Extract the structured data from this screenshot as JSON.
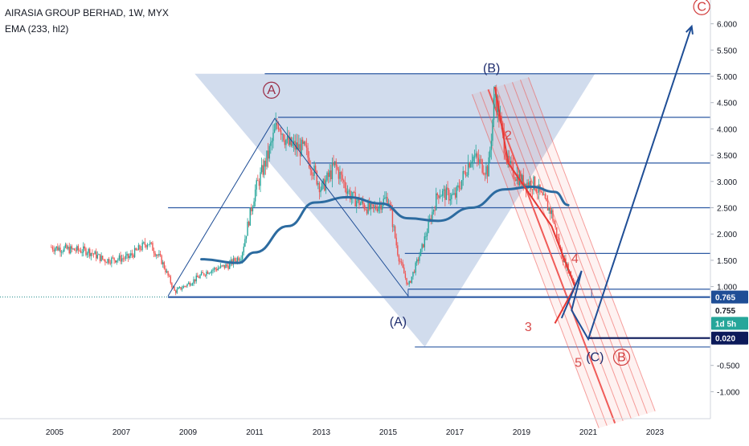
{
  "header": {
    "symbol_line": "AIRASIA GROUP BERHAD, 1W, MYX",
    "indicator_line": "EMA (233, hl2)"
  },
  "colors": {
    "candle_up": "#26a69a",
    "candle_down": "#ef5350",
    "ema": "#2c6ba0",
    "fib_line": "#2d5aa3",
    "fib_fill": "#c9d6ea",
    "channel": "#ef5350",
    "projection": "#1f4e96",
    "price_tag": "#1f4e96",
    "countdown_tag": "#26a69a",
    "low_tag": "#0c1a5a"
  },
  "chart_data": {
    "type": "candlestick",
    "x_axis": {
      "ticks": [
        "2005",
        "2007",
        "2009",
        "2011",
        "2013",
        "2015",
        "2017",
        "2019",
        "2021",
        "2023"
      ],
      "range": [
        2004.0,
        2024.0
      ]
    },
    "y_axis": {
      "ticks": [
        "6.000",
        "5.500",
        "5.000",
        "4.500",
        "4.000",
        "3.500",
        "3.000",
        "2.500",
        "2.000",
        "1.500",
        "1.000",
        "-0.500",
        "-1.000"
      ],
      "range": [
        -1.5,
        6.4
      ],
      "grid": false
    },
    "price_series_keypoints": [
      {
        "t": 2004.9,
        "v": 1.75
      },
      {
        "t": 2005.5,
        "v": 1.7
      },
      {
        "t": 2006.0,
        "v": 1.68
      },
      {
        "t": 2006.5,
        "v": 1.5
      },
      {
        "t": 2007.2,
        "v": 1.55
      },
      {
        "t": 2007.8,
        "v": 1.85
      },
      {
        "t": 2008.2,
        "v": 1.5
      },
      {
        "t": 2008.6,
        "v": 0.9
      },
      {
        "t": 2009.0,
        "v": 1.05
      },
      {
        "t": 2009.6,
        "v": 1.3
      },
      {
        "t": 2010.2,
        "v": 1.4
      },
      {
        "t": 2010.6,
        "v": 1.6
      },
      {
        "t": 2011.0,
        "v": 2.8
      },
      {
        "t": 2011.4,
        "v": 3.5
      },
      {
        "t": 2011.7,
        "v": 4.15
      },
      {
        "t": 2012.0,
        "v": 3.7
      },
      {
        "t": 2012.5,
        "v": 3.6
      },
      {
        "t": 2013.0,
        "v": 2.85
      },
      {
        "t": 2013.4,
        "v": 3.3
      },
      {
        "t": 2013.9,
        "v": 2.7
      },
      {
        "t": 2014.5,
        "v": 2.45
      },
      {
        "t": 2015.0,
        "v": 2.7
      },
      {
        "t": 2015.3,
        "v": 1.6
      },
      {
        "t": 2015.6,
        "v": 1.0
      },
      {
        "t": 2016.0,
        "v": 1.7
      },
      {
        "t": 2016.5,
        "v": 2.8
      },
      {
        "t": 2017.0,
        "v": 2.7
      },
      {
        "t": 2017.5,
        "v": 3.5
      },
      {
        "t": 2018.0,
        "v": 3.2
      },
      {
        "t": 2018.2,
        "v": 4.7
      },
      {
        "t": 2018.6,
        "v": 3.3
      },
      {
        "t": 2019.0,
        "v": 3.0
      },
      {
        "t": 2019.4,
        "v": 2.95
      },
      {
        "t": 2019.6,
        "v": 2.7
      },
      {
        "t": 2019.9,
        "v": 2.4
      },
      {
        "t": 2020.2,
        "v": 1.6
      },
      {
        "t": 2020.6,
        "v": 1.05
      }
    ],
    "ema_233": [
      {
        "t": 2009.4,
        "v": 1.52
      },
      {
        "t": 2010.5,
        "v": 1.45
      },
      {
        "t": 2011.0,
        "v": 1.65
      },
      {
        "t": 2012.0,
        "v": 2.15
      },
      {
        "t": 2012.8,
        "v": 2.6
      },
      {
        "t": 2013.8,
        "v": 2.7
      },
      {
        "t": 2014.8,
        "v": 2.58
      },
      {
        "t": 2015.6,
        "v": 2.3
      },
      {
        "t": 2016.5,
        "v": 2.25
      },
      {
        "t": 2017.5,
        "v": 2.5
      },
      {
        "t": 2018.5,
        "v": 2.85
      },
      {
        "t": 2019.3,
        "v": 2.9
      },
      {
        "t": 2020.0,
        "v": 2.8
      },
      {
        "t": 2020.4,
        "v": 2.55
      }
    ],
    "fib_levels": [
      {
        "t0": 2011.3,
        "v": 5.05
      },
      {
        "t0": 2011.7,
        "v": 4.22
      },
      {
        "t0": 2012.7,
        "v": 3.35
      },
      {
        "t0": 2008.4,
        "v": 2.5
      },
      {
        "t0": 2015.5,
        "v": 1.63
      },
      {
        "t0": 2015.6,
        "v": 0.95
      },
      {
        "t0": 2015.8,
        "v": -0.15
      }
    ],
    "fib_triangle": [
      {
        "t": 2009.2,
        "v": 5.05
      },
      {
        "t": 2021.2,
        "v": 5.05
      },
      {
        "t": 2016.1,
        "v": -0.15
      }
    ],
    "support_line": {
      "v": 0.8,
      "label": "0.765"
    },
    "abc_structure": [
      {
        "t": 2008.4,
        "v": 0.82
      },
      {
        "t": 2011.6,
        "v": 4.2
      },
      {
        "t": 2015.6,
        "v": 0.82
      }
    ],
    "channel_lines_count": 8,
    "wave_path_red": [
      {
        "t": 2018.2,
        "v": 4.8
      },
      {
        "t": 2018.6,
        "v": 3.35
      },
      {
        "t": 2019.9,
        "v": 2.15
      },
      {
        "t": 2020.6,
        "v": 1.0
      },
      {
        "t": 2020.0,
        "v": 0.3
      }
    ],
    "projection": [
      {
        "t": 2020.2,
        "v": 0.4
      },
      {
        "t": 2020.8,
        "v": 1.3
      },
      {
        "t": 2020.5,
        "v": 0.55
      },
      {
        "t": 2021.0,
        "v": 0.0
      },
      {
        "t": 2024.1,
        "v": 5.95
      }
    ],
    "low_target": {
      "v": 0.02,
      "label": "0.020"
    },
    "last_price": "0.755",
    "countdown": "1d 5h",
    "annotations": [
      {
        "text": "A",
        "t": 2011.5,
        "v": 4.66,
        "color": "#9a2b45",
        "circled": true
      },
      {
        "text": "(B)",
        "t": 2018.1,
        "v": 5.08,
        "color": "#1f2d6e",
        "circled": false
      },
      {
        "text": "(A)",
        "t": 2015.3,
        "v": 0.25,
        "color": "#1f2d6e",
        "circled": false
      },
      {
        "text": "C",
        "t": 2024.4,
        "v": 6.25,
        "color": "#d13c3c",
        "circled": true
      },
      {
        "text": "2",
        "t": 2018.6,
        "v": 3.8,
        "color": "#d84a4a",
        "circled": false
      },
      {
        "text": "3",
        "t": 2019.2,
        "v": 0.15,
        "color": "#d84a4a",
        "circled": false
      },
      {
        "text": "4",
        "t": 2020.6,
        "v": 1.45,
        "color": "#d84a4a",
        "circled": false
      },
      {
        "text": "5",
        "t": 2020.7,
        "v": -0.53,
        "color": "#d84a4a",
        "circled": false
      },
      {
        "text": "(C)",
        "t": 2021.2,
        "v": -0.42,
        "color": "#1f2d6e",
        "circled": false
      },
      {
        "text": "B",
        "t": 2022.0,
        "v": -0.42,
        "color": "#d13c3c",
        "circled": true
      }
    ]
  }
}
